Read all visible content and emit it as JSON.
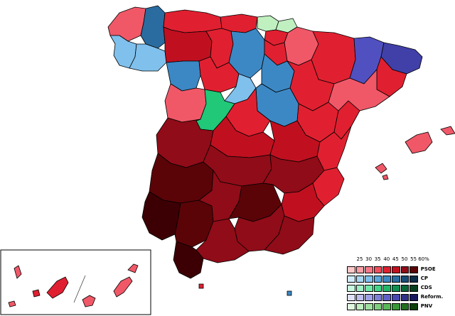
{
  "legend": {
    "scale": [
      "25",
      "30",
      "35",
      "40",
      "45",
      "50",
      "55",
      "60%"
    ],
    "parties": [
      {
        "name": "PSOE",
        "colors": [
          "#ffc8c8",
          "#ffa0a8",
          "#f87888",
          "#f0505e",
          "#e02030",
          "#c01020",
          "#900c18",
          "#5a0408"
        ]
      },
      {
        "name": "CP",
        "colors": [
          "#d0ecfc",
          "#a8d8f4",
          "#80c0ec",
          "#5ca8dc",
          "#3c88c4",
          "#2a6ca0",
          "#1a4c78",
          "#0c2c48"
        ]
      },
      {
        "name": "CDS",
        "colors": [
          "#c8f8e0",
          "#a0f0c8",
          "#70e8a8",
          "#40d888",
          "#20b868",
          "#109050",
          "#086838",
          "#044020"
        ]
      },
      {
        "name": "Reform.",
        "colors": [
          "#e0e0f8",
          "#c0c0f0",
          "#a0a0e8",
          "#8080d8",
          "#6060c8",
          "#4848b0",
          "#303088",
          "#181860"
        ]
      },
      {
        "name": "PNV",
        "colors": [
          "#e0f8e0",
          "#c0f0c0",
          "#a0e0a0",
          "#80d080",
          "#58b858",
          "#389838",
          "#207020",
          "#0c400c"
        ]
      }
    ]
  }
}
